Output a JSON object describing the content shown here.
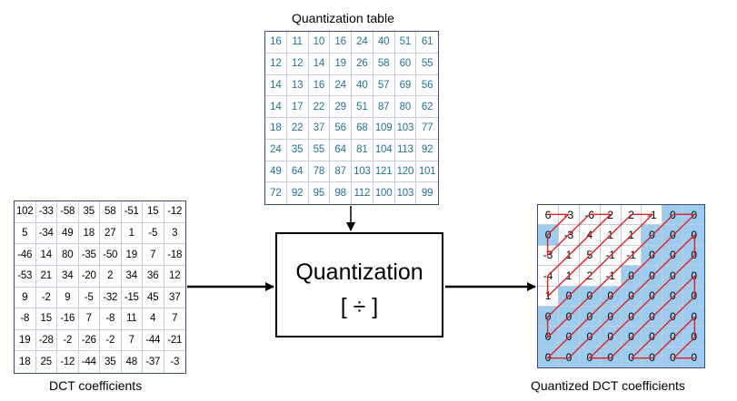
{
  "quant_table": {
    "title": "Quantization table",
    "rows": [
      [
        "16",
        "11",
        "10",
        "16",
        "24",
        "40",
        "51",
        "61"
      ],
      [
        "12",
        "12",
        "14",
        "19",
        "26",
        "58",
        "60",
        "55"
      ],
      [
        "14",
        "13",
        "16",
        "24",
        "40",
        "57",
        "69",
        "56"
      ],
      [
        "14",
        "17",
        "22",
        "29",
        "51",
        "87",
        "80",
        "62"
      ],
      [
        "18",
        "22",
        "37",
        "56",
        "68",
        "109",
        "103",
        "77"
      ],
      [
        "24",
        "35",
        "55",
        "64",
        "81",
        "104",
        "113",
        "92"
      ],
      [
        "49",
        "64",
        "78",
        "87",
        "103",
        "121",
        "120",
        "101"
      ],
      [
        "72",
        "92",
        "95",
        "98",
        "112",
        "100",
        "103",
        "99"
      ]
    ]
  },
  "dct": {
    "label": "DCT coefficients",
    "rows": [
      [
        "102",
        "-33",
        "-58",
        "35",
        "58",
        "-51",
        "15",
        "-12"
      ],
      [
        "5",
        "-34",
        "49",
        "18",
        "27",
        "1",
        "-5",
        "3"
      ],
      [
        "-46",
        "14",
        "80",
        "-35",
        "-50",
        "19",
        "7",
        "-18"
      ],
      [
        "-53",
        "21",
        "34",
        "-20",
        "2",
        "34",
        "36",
        "12"
      ],
      [
        "9",
        "-2",
        "9",
        "-5",
        "-32",
        "-15",
        "45",
        "37"
      ],
      [
        "-8",
        "15",
        "-16",
        "7",
        "-8",
        "11",
        "4",
        "7"
      ],
      [
        "19",
        "-28",
        "-2",
        "-26",
        "-2",
        "7",
        "-44",
        "-21"
      ],
      [
        "18",
        "25",
        "-12",
        "-44",
        "35",
        "48",
        "-37",
        "-3"
      ]
    ]
  },
  "quantizer": {
    "label": "Quantization",
    "symbol": "[ ÷ ]"
  },
  "quantized": {
    "label": "Quantized DCT coefficients",
    "rows": [
      [
        "6",
        "-3",
        "-6",
        "2",
        "2",
        "-1",
        "0",
        "0"
      ],
      [
        "0",
        "-3",
        "4",
        "1",
        "1",
        "0",
        "0",
        "0"
      ],
      [
        "-3",
        "1",
        "5",
        "-1",
        "-1",
        "0",
        "0",
        "0"
      ],
      [
        "-4",
        "1",
        "2",
        "-1",
        "0",
        "0",
        "0",
        "0"
      ],
      [
        "1",
        "0",
        "0",
        "0",
        "0",
        "0",
        "0",
        "0"
      ],
      [
        "0",
        "0",
        "0",
        "0",
        "0",
        "0",
        "0",
        "0"
      ],
      [
        "0",
        "0",
        "0",
        "0",
        "0",
        "0",
        "0",
        "0"
      ],
      [
        "0",
        "0",
        "0",
        "0",
        "0",
        "0",
        "0",
        "0"
      ]
    ],
    "highlight_color": "#9ccdf0",
    "zigzag_color": "#e02020"
  }
}
